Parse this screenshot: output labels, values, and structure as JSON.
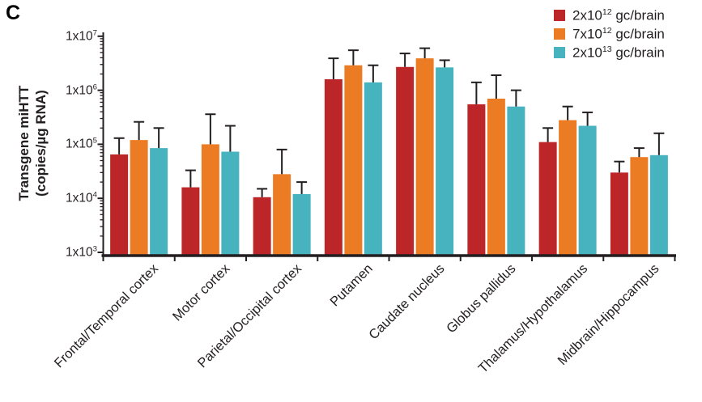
{
  "panel_label": "C",
  "colors": {
    "axis": "#231f20",
    "background": "#ffffff"
  },
  "legend": {
    "items": [
      {
        "name": "dose-2e12",
        "coeff": "2x10",
        "exp": "12",
        "suffix": " gc/brain",
        "color": "#bc2629"
      },
      {
        "name": "dose-7e12",
        "coeff": "7x10",
        "exp": "12",
        "suffix": " gc/brain",
        "color": "#ec7c24"
      },
      {
        "name": "dose-2e13",
        "coeff": "2x10",
        "exp": "13",
        "suffix": " gc/brain",
        "color": "#47b3bf"
      }
    ]
  },
  "chart_data": {
    "type": "bar",
    "y_scale": "log10",
    "grid": false,
    "legend_position": "top-right",
    "ylabel_line1": "Transgene miHTT",
    "ylabel_line2": "(copies/µg RNA)",
    "ylim": [
      1000,
      10000000
    ],
    "yticks": [
      {
        "coeff": "1x10",
        "exp": "7",
        "value": 10000000
      },
      {
        "coeff": "1x10",
        "exp": "6",
        "value": 1000000
      },
      {
        "coeff": "1x10",
        "exp": "5",
        "value": 100000
      },
      {
        "coeff": "1x10",
        "exp": "4",
        "value": 10000
      },
      {
        "coeff": "1x10",
        "exp": "3",
        "value": 1000
      }
    ],
    "categories": [
      "Frontal/Temporal cortex",
      "Motor cortex",
      "Parietal/Occipital cortex",
      "Putamen",
      "Caudate nucleus",
      "Globus pallidus",
      "Thalamus/Hypothalamus",
      "Midbrain/Hippocampus"
    ],
    "series": [
      {
        "name": "2x10^12 gc/brain",
        "color": "#bc2629",
        "values": [
          65000,
          16000,
          10500,
          1600000,
          2700000,
          550000,
          110000,
          30000
        ],
        "error_high": [
          130000,
          33000,
          15000,
          3900000,
          4800000,
          1400000,
          200000,
          48000
        ]
      },
      {
        "name": "7x10^12 gc/brain",
        "color": "#ec7c24",
        "values": [
          120000,
          100000,
          28000,
          2900000,
          3900000,
          700000,
          280000,
          58000
        ],
        "error_high": [
          260000,
          360000,
          80000,
          5500000,
          6000000,
          1900000,
          500000,
          85000
        ]
      },
      {
        "name": "2x10^13 gc/brain",
        "color": "#47b3bf",
        "values": [
          85000,
          73000,
          12000,
          1400000,
          2650000,
          500000,
          220000,
          63000
        ],
        "error_high": [
          200000,
          220000,
          20000,
          2900000,
          3600000,
          1000000,
          390000,
          160000
        ]
      }
    ]
  }
}
